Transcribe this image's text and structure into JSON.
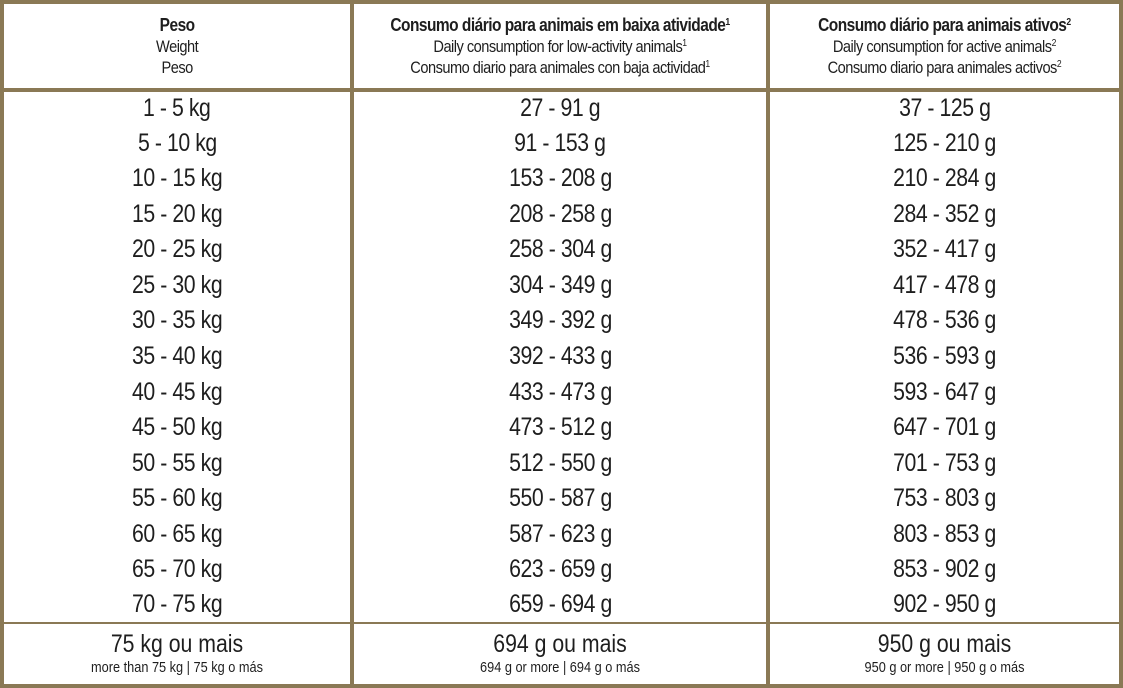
{
  "header": {
    "col1": {
      "line1": "Peso",
      "line2": "Weight",
      "line3": "Peso"
    },
    "col2": {
      "line1": "Consumo diário para animais em baixa atividade",
      "line2": "Daily consumption for low-activity animals",
      "line3": "Consumo diario para animales con baja actividad",
      "sup": "1"
    },
    "col3": {
      "line1": "Consumo diário para animais ativos",
      "line2": "Daily consumption for active animals",
      "line3": "Consumo diario para animales activos",
      "sup": "2"
    }
  },
  "rows": [
    {
      "weight": "1 - 5 kg",
      "low": "27 - 91 g",
      "active": "37 - 125 g"
    },
    {
      "weight": "5 - 10 kg",
      "low": "91 - 153 g",
      "active": "125 - 210 g"
    },
    {
      "weight": "10 - 15 kg",
      "low": "153 - 208 g",
      "active": "210 - 284 g"
    },
    {
      "weight": "15 - 20 kg",
      "low": "208 - 258 g",
      "active": "284 - 352 g"
    },
    {
      "weight": "20 - 25 kg",
      "low": "258 - 304 g",
      "active": "352 - 417 g"
    },
    {
      "weight": "25 - 30 kg",
      "low": "304 - 349 g",
      "active": "417 - 478 g"
    },
    {
      "weight": "30 - 35 kg",
      "low": "349 - 392 g",
      "active": "478 - 536 g"
    },
    {
      "weight": "35 - 40 kg",
      "low": "392 - 433 g",
      "active": "536 - 593 g"
    },
    {
      "weight": "40 - 45 kg",
      "low": "433 - 473 g",
      "active": "593 - 647 g"
    },
    {
      "weight": "45 - 50 kg",
      "low": "473 - 512 g",
      "active": "647 - 701 g"
    },
    {
      "weight": "50 - 55 kg",
      "low": "512 - 550 g",
      "active": "701 - 753 g"
    },
    {
      "weight": "55 - 60 kg",
      "low": "550 - 587 g",
      "active": "753 - 803 g"
    },
    {
      "weight": "60 - 65 kg",
      "low": "587 - 623 g",
      "active": "803 - 853 g"
    },
    {
      "weight": "65 - 70 kg",
      "low": "623 - 659 g",
      "active": "853 - 902 g"
    },
    {
      "weight": "70 - 75 kg",
      "low": "659 - 694 g",
      "active": "902 - 950 g"
    }
  ],
  "last_row": {
    "weight": {
      "main": "75 kg ou mais",
      "sub": "more than 75 kg | 75 kg o más"
    },
    "low": {
      "main": "694 g ou mais",
      "sub": "694 g or more | 694 g o más"
    },
    "active": {
      "main": "950 g ou mais",
      "sub": "950 g or more | 950 g o más"
    }
  },
  "colors": {
    "border": "#8a7955",
    "text": "#1e1e1e",
    "background": "#ffffff"
  }
}
